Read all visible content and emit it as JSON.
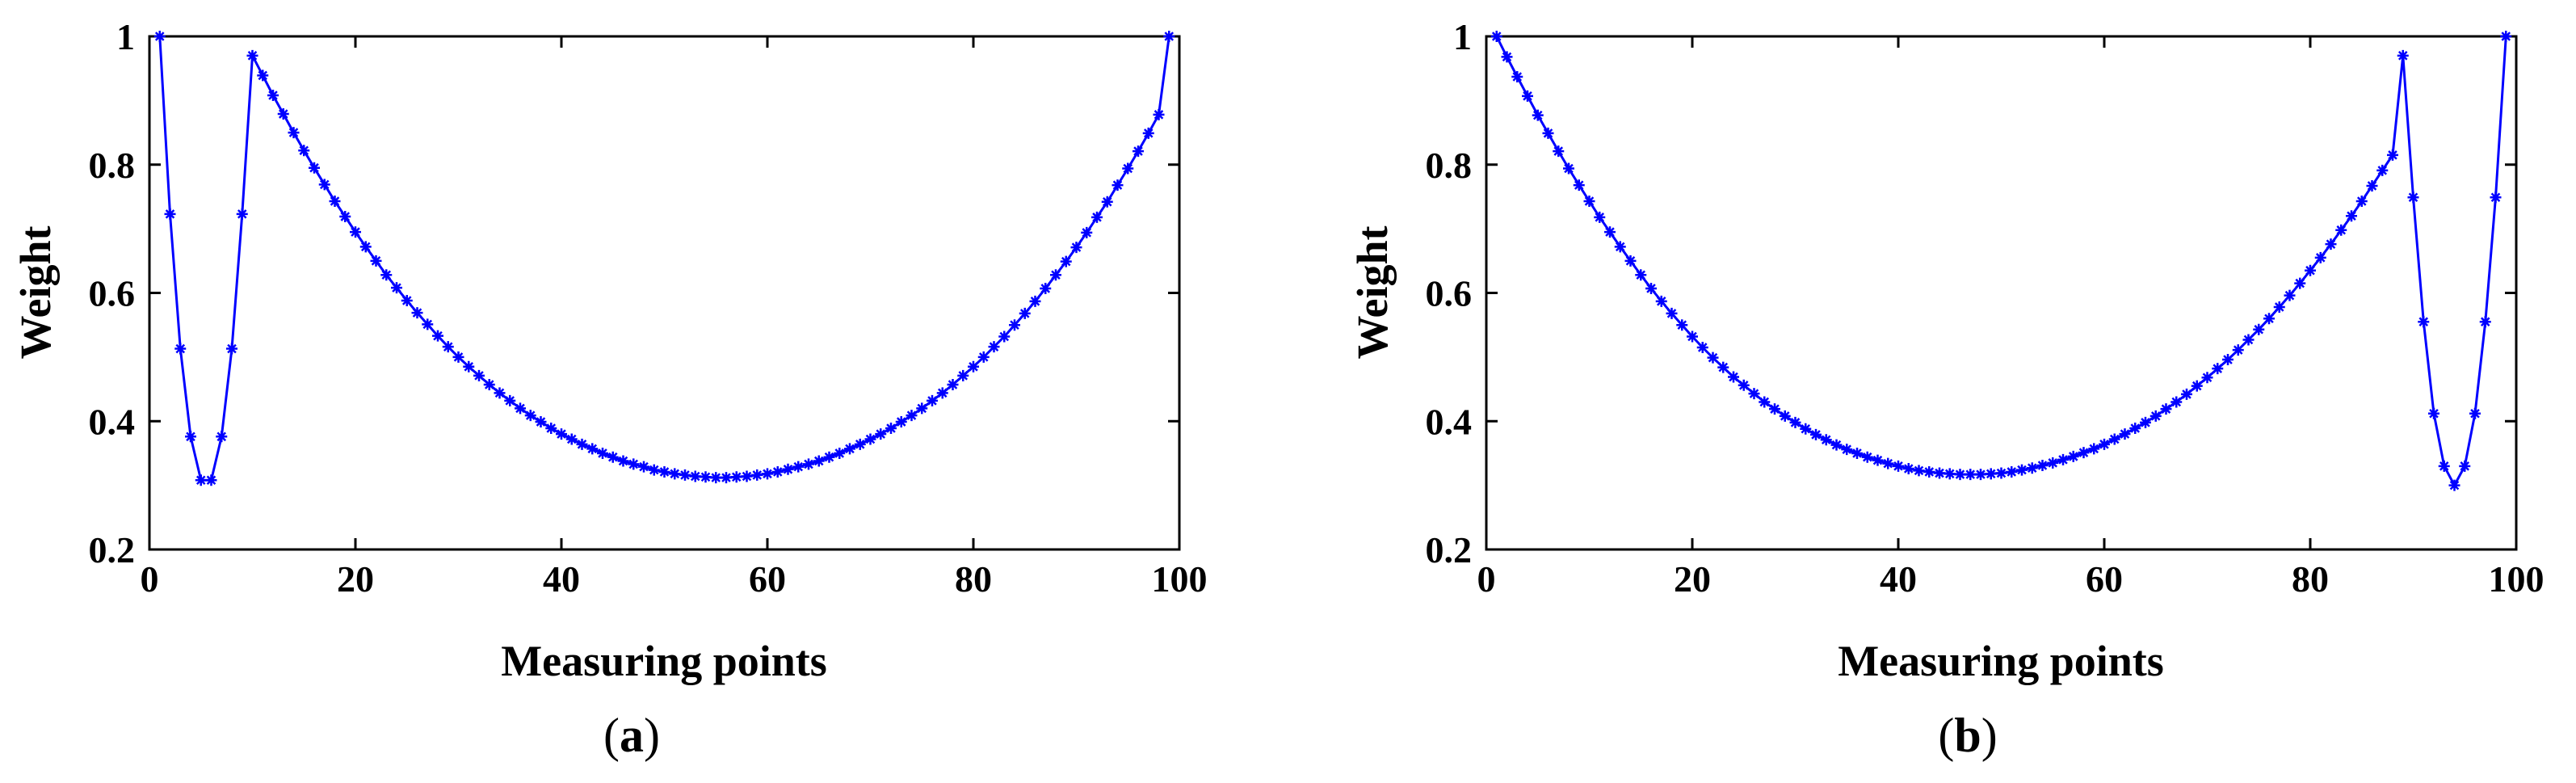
{
  "figure": {
    "panels": [
      {
        "id": "a",
        "caption": "(a)",
        "caption_open": "(",
        "caption_letter": "a",
        "caption_close": ")"
      },
      {
        "id": "b",
        "caption": "(b)",
        "caption_open": "(",
        "caption_letter": "b",
        "caption_close": ")"
      }
    ]
  },
  "chart_data": [
    {
      "type": "line",
      "marker": "asterisk",
      "color": "#0000FF",
      "title": "",
      "xlabel": "Measuring points",
      "ylabel": "Weight",
      "xlim": [
        0,
        100
      ],
      "ylim": [
        0.2,
        1
      ],
      "xticks": [
        0,
        20,
        40,
        60,
        80,
        100
      ],
      "yticks": [
        0.2,
        0.4,
        0.6,
        0.8,
        1
      ],
      "xtick_labels": [
        "0",
        "20",
        "40",
        "60",
        "80",
        "100"
      ],
      "ytick_labels": [
        "0.2",
        "0.4",
        "0.6",
        "0.8",
        "1"
      ],
      "grid": false,
      "legend": null,
      "x": [
        1,
        2,
        3,
        4,
        5,
        6,
        7,
        8,
        9,
        10,
        11,
        12,
        13,
        14,
        15,
        16,
        17,
        18,
        19,
        20,
        21,
        22,
        23,
        24,
        25,
        26,
        27,
        28,
        29,
        30,
        31,
        32,
        33,
        34,
        35,
        36,
        37,
        38,
        39,
        40,
        41,
        42,
        43,
        44,
        45,
        46,
        47,
        48,
        49,
        50,
        51,
        52,
        53,
        54,
        55,
        56,
        57,
        58,
        59,
        60,
        61,
        62,
        63,
        64,
        65,
        66,
        67,
        68,
        69,
        70,
        71,
        72,
        73,
        74,
        75,
        76,
        77,
        78,
        79,
        80,
        81,
        82,
        83,
        84,
        85,
        86,
        87,
        88,
        89,
        90,
        91,
        92,
        93,
        94,
        95,
        96,
        97,
        98,
        99
      ],
      "y": [
        1.0,
        0.723,
        0.513,
        0.376,
        0.308,
        0.308,
        0.376,
        0.513,
        0.723,
        0.97,
        0.939,
        0.908,
        0.879,
        0.85,
        0.822,
        0.795,
        0.769,
        0.743,
        0.719,
        0.695,
        0.672,
        0.65,
        0.628,
        0.608,
        0.588,
        0.569,
        0.551,
        0.533,
        0.516,
        0.5,
        0.485,
        0.471,
        0.457,
        0.444,
        0.432,
        0.42,
        0.409,
        0.399,
        0.389,
        0.38,
        0.372,
        0.364,
        0.357,
        0.35,
        0.344,
        0.338,
        0.333,
        0.329,
        0.324,
        0.321,
        0.318,
        0.316,
        0.314,
        0.313,
        0.312,
        0.312,
        0.313,
        0.314,
        0.316,
        0.318,
        0.321,
        0.325,
        0.329,
        0.333,
        0.338,
        0.344,
        0.35,
        0.357,
        0.364,
        0.372,
        0.38,
        0.389,
        0.399,
        0.409,
        0.42,
        0.432,
        0.444,
        0.457,
        0.471,
        0.485,
        0.5,
        0.516,
        0.532,
        0.55,
        0.568,
        0.587,
        0.607,
        0.628,
        0.649,
        0.671,
        0.694,
        0.718,
        0.742,
        0.768,
        0.794,
        0.821,
        0.849,
        0.878,
        1.0
      ]
    },
    {
      "type": "line",
      "marker": "asterisk",
      "color": "#0000FF",
      "title": "",
      "xlabel": "Measuring points",
      "ylabel": "Weight",
      "xlim": [
        0,
        100
      ],
      "ylim": [
        0.2,
        1
      ],
      "xticks": [
        0,
        20,
        40,
        60,
        80,
        100
      ],
      "yticks": [
        0.2,
        0.4,
        0.6,
        0.8,
        1
      ],
      "xtick_labels": [
        "0",
        "20",
        "40",
        "60",
        "80",
        "100"
      ],
      "ytick_labels": [
        "0.2",
        "0.4",
        "0.6",
        "0.8",
        "1"
      ],
      "grid": false,
      "legend": null,
      "x": [
        1,
        2,
        3,
        4,
        5,
        6,
        7,
        8,
        9,
        10,
        11,
        12,
        13,
        14,
        15,
        16,
        17,
        18,
        19,
        20,
        21,
        22,
        23,
        24,
        25,
        26,
        27,
        28,
        29,
        30,
        31,
        32,
        33,
        34,
        35,
        36,
        37,
        38,
        39,
        40,
        41,
        42,
        43,
        44,
        45,
        46,
        47,
        48,
        49,
        50,
        51,
        52,
        53,
        54,
        55,
        56,
        57,
        58,
        59,
        60,
        61,
        62,
        63,
        64,
        65,
        66,
        67,
        68,
        69,
        70,
        71,
        72,
        73,
        74,
        75,
        76,
        77,
        78,
        79,
        80,
        81,
        82,
        83,
        84,
        85,
        86,
        87,
        88,
        89,
        90,
        91,
        92,
        93,
        94,
        95,
        96,
        97,
        98,
        99
      ],
      "y": [
        1.0,
        0.968,
        0.937,
        0.907,
        0.877,
        0.849,
        0.821,
        0.794,
        0.768,
        0.743,
        0.718,
        0.695,
        0.672,
        0.65,
        0.628,
        0.607,
        0.587,
        0.568,
        0.55,
        0.532,
        0.515,
        0.499,
        0.484,
        0.469,
        0.456,
        0.443,
        0.43,
        0.419,
        0.408,
        0.398,
        0.388,
        0.379,
        0.371,
        0.363,
        0.356,
        0.35,
        0.344,
        0.339,
        0.334,
        0.33,
        0.326,
        0.323,
        0.321,
        0.319,
        0.318,
        0.317,
        0.317,
        0.317,
        0.318,
        0.319,
        0.321,
        0.324,
        0.327,
        0.331,
        0.335,
        0.34,
        0.345,
        0.351,
        0.357,
        0.364,
        0.372,
        0.38,
        0.389,
        0.398,
        0.408,
        0.419,
        0.43,
        0.442,
        0.455,
        0.468,
        0.482,
        0.496,
        0.511,
        0.527,
        0.543,
        0.56,
        0.578,
        0.596,
        0.615,
        0.635,
        0.655,
        0.676,
        0.698,
        0.72,
        0.743,
        0.767,
        0.791,
        0.815,
        0.97,
        0.749,
        0.555,
        0.412,
        0.33,
        0.3,
        0.33,
        0.412,
        0.555,
        0.749,
        1.0
      ]
    }
  ]
}
